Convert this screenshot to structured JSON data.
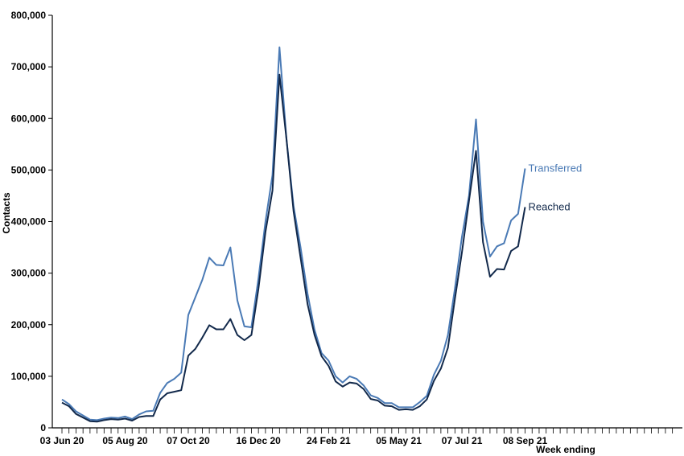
{
  "chart_data": {
    "type": "line",
    "title": "",
    "xlabel": "Week ending",
    "ylabel": "Contacts",
    "ylim": [
      0,
      800000
    ],
    "yticks": [
      0,
      100000,
      200000,
      300000,
      400000,
      500000,
      600000,
      700000,
      800000
    ],
    "ytick_labels": [
      "0",
      "100,000",
      "200,000",
      "300,000",
      "400,000",
      "500,000",
      "600,000",
      "700,000",
      "800,000"
    ],
    "xtick_labels": [
      {
        "index": 0,
        "label": "03 Jun 20"
      },
      {
        "index": 9,
        "label": "05 Aug 20"
      },
      {
        "index": 18,
        "label": "07 Oct 20"
      },
      {
        "index": 28,
        "label": "16 Dec 20"
      },
      {
        "index": 38,
        "label": "24 Feb 21"
      },
      {
        "index": 48,
        "label": "05 May 21"
      },
      {
        "index": 57,
        "label": "07 Jul 21"
      },
      {
        "index": 66,
        "label": "08 Sep 21"
      }
    ],
    "num_weeks": 67,
    "axis_week_slots": 88,
    "grid": false,
    "legend": "inline labels at line ends",
    "colors": {
      "transferred": "#4a7ab5",
      "reached": "#12294b"
    },
    "series": [
      {
        "name": "Transferred",
        "color": "#4a7ab5",
        "values": [
          55000,
          46000,
          32000,
          24000,
          16000,
          15000,
          18000,
          20000,
          19000,
          22000,
          17000,
          26000,
          32000,
          33000,
          68000,
          87000,
          95000,
          107000,
          219000,
          253000,
          287000,
          330000,
          316000,
          315000,
          350000,
          247000,
          197000,
          195000,
          290000,
          400000,
          490000,
          738000,
          560000,
          430000,
          350000,
          260000,
          190000,
          145000,
          130000,
          100000,
          88000,
          100000,
          95000,
          82000,
          63000,
          58000,
          48000,
          48000,
          40000,
          40000,
          40000,
          50000,
          62000,
          103000,
          130000,
          180000,
          270000,
          370000,
          450000,
          598000,
          400000,
          332000,
          352000,
          358000,
          402000,
          415000,
          503000
        ]
      },
      {
        "name": "Reached",
        "color": "#12294b",
        "values": [
          49000,
          42000,
          27000,
          20000,
          13000,
          12000,
          15000,
          17000,
          16000,
          18000,
          14000,
          21000,
          23000,
          23000,
          55000,
          67000,
          70000,
          73000,
          140000,
          153000,
          175000,
          199000,
          191000,
          191000,
          211000,
          180000,
          170000,
          180000,
          270000,
          380000,
          460000,
          685000,
          560000,
          420000,
          330000,
          240000,
          180000,
          139000,
          120000,
          90000,
          80000,
          88000,
          86000,
          75000,
          56000,
          53000,
          43000,
          42000,
          35000,
          36000,
          35000,
          42000,
          55000,
          91000,
          115000,
          155000,
          250000,
          340000,
          440000,
          537000,
          360000,
          293000,
          308000,
          307000,
          343000,
          352000,
          428000
        ]
      }
    ]
  }
}
